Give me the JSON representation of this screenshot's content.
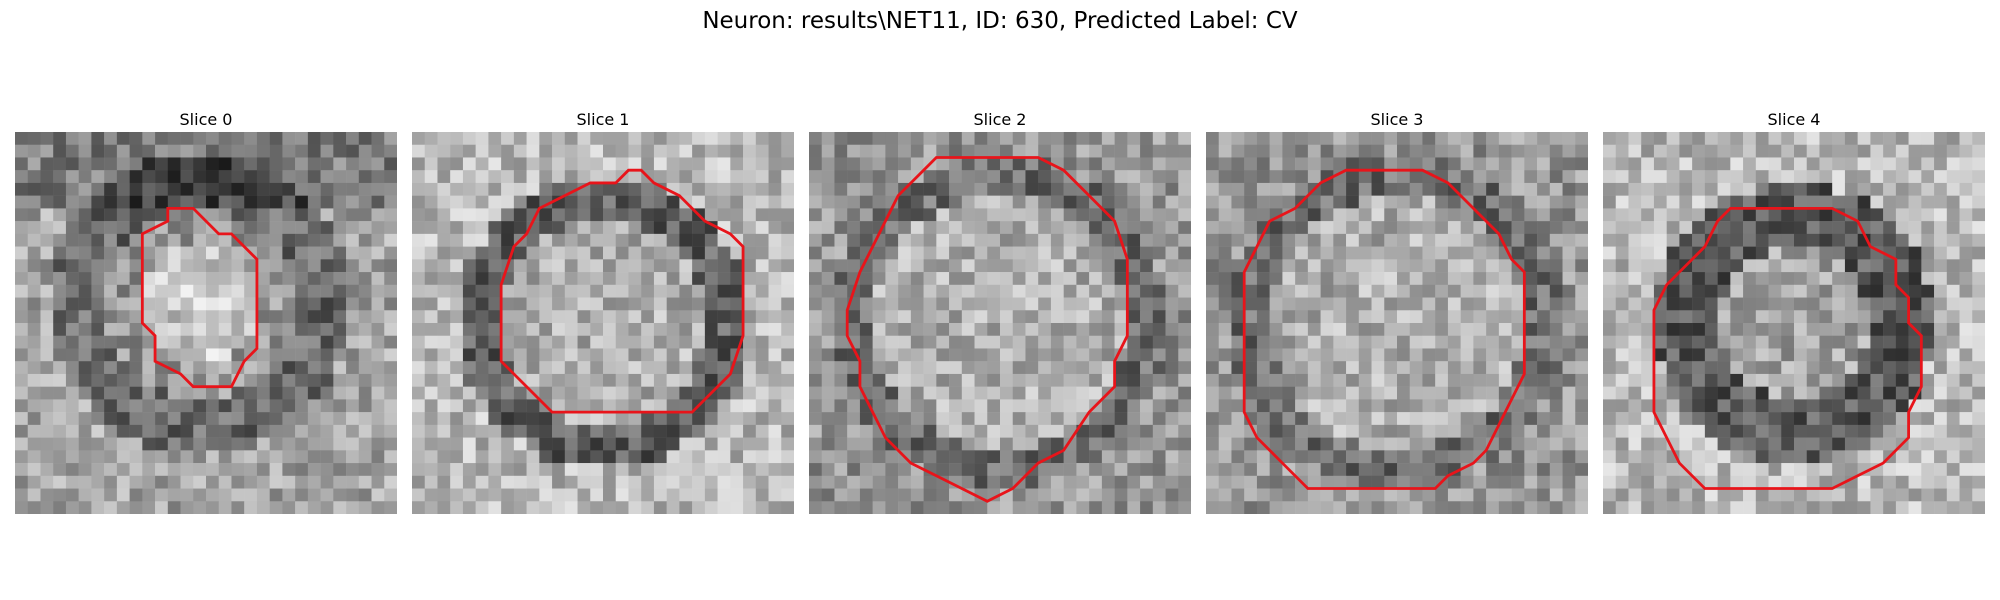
{
  "figure": {
    "title": "Neuron: results\\NET11, ID: 630, Predicted Label: CV"
  },
  "contour_color": "#e8141a",
  "grid_size": 30,
  "slices": [
    {
      "label": "Slice 0",
      "seed": 11,
      "pattern": "blob-small",
      "contour": [
        [
          12,
          6
        ],
        [
          14,
          6
        ],
        [
          16,
          8
        ],
        [
          17,
          8
        ],
        [
          19,
          10
        ],
        [
          19,
          13
        ],
        [
          19,
          15
        ],
        [
          19,
          17
        ],
        [
          18,
          18
        ],
        [
          17,
          20
        ],
        [
          15,
          20
        ],
        [
          14,
          20
        ],
        [
          13,
          19
        ],
        [
          11,
          18
        ],
        [
          11,
          16
        ],
        [
          10,
          15
        ],
        [
          10,
          13
        ],
        [
          10,
          11
        ],
        [
          10,
          8
        ],
        [
          12,
          7
        ]
      ]
    },
    {
      "label": "Slice 1",
      "seed": 23,
      "pattern": "ring",
      "contour": [
        [
          17,
          3
        ],
        [
          18,
          3
        ],
        [
          19,
          4
        ],
        [
          21,
          5
        ],
        [
          23,
          7
        ],
        [
          25,
          8
        ],
        [
          26,
          9
        ],
        [
          26,
          11
        ],
        [
          26,
          13
        ],
        [
          26,
          16
        ],
        [
          25,
          19
        ],
        [
          23,
          21
        ],
        [
          22,
          22
        ],
        [
          20,
          22
        ],
        [
          18,
          22
        ],
        [
          16,
          22
        ],
        [
          14,
          22
        ],
        [
          12,
          22
        ],
        [
          11,
          22
        ],
        [
          10,
          21
        ],
        [
          8,
          19
        ],
        [
          7,
          18
        ],
        [
          7,
          16
        ],
        [
          7,
          14
        ],
        [
          7,
          12
        ],
        [
          8,
          9
        ],
        [
          9,
          8
        ],
        [
          10,
          6
        ],
        [
          12,
          5
        ],
        [
          14,
          4
        ],
        [
          16,
          4
        ]
      ]
    },
    {
      "label": "Slice 2",
      "seed": 37,
      "pattern": "ring-large",
      "contour": [
        [
          11,
          2
        ],
        [
          18,
          2
        ],
        [
          20,
          3
        ],
        [
          22,
          5
        ],
        [
          24,
          7
        ],
        [
          25,
          10
        ],
        [
          25,
          12
        ],
        [
          25,
          14
        ],
        [
          25,
          16
        ],
        [
          24,
          18
        ],
        [
          24,
          20
        ],
        [
          22,
          22
        ],
        [
          20,
          25
        ],
        [
          18,
          26
        ],
        [
          16,
          28
        ],
        [
          14,
          29
        ],
        [
          12,
          28
        ],
        [
          10,
          27
        ],
        [
          8,
          26
        ],
        [
          6,
          24
        ],
        [
          5,
          22
        ],
        [
          4,
          20
        ],
        [
          4,
          18
        ],
        [
          3,
          16
        ],
        [
          3,
          14
        ],
        [
          4,
          11
        ],
        [
          5,
          9
        ],
        [
          6,
          7
        ],
        [
          7,
          5
        ],
        [
          9,
          3
        ],
        [
          10,
          2
        ]
      ]
    },
    {
      "label": "Slice 3",
      "seed": 51,
      "pattern": "ring-large",
      "contour": [
        [
          12,
          3
        ],
        [
          17,
          3
        ],
        [
          19,
          4
        ],
        [
          21,
          6
        ],
        [
          23,
          8
        ],
        [
          24,
          10
        ],
        [
          25,
          11
        ],
        [
          25,
          13
        ],
        [
          25,
          15
        ],
        [
          25,
          17
        ],
        [
          25,
          19
        ],
        [
          24,
          21
        ],
        [
          23,
          23
        ],
        [
          22,
          25
        ],
        [
          21,
          26
        ],
        [
          19,
          27
        ],
        [
          18,
          28
        ],
        [
          13,
          28
        ],
        [
          11,
          28
        ],
        [
          8,
          28
        ],
        [
          6,
          26
        ],
        [
          4,
          24
        ],
        [
          3,
          22
        ],
        [
          3,
          19
        ],
        [
          3,
          16
        ],
        [
          3,
          13
        ],
        [
          3,
          11
        ],
        [
          4,
          9
        ],
        [
          5,
          7
        ],
        [
          7,
          6
        ],
        [
          9,
          4
        ],
        [
          11,
          3
        ]
      ]
    },
    {
      "label": "Slice 4",
      "seed": 67,
      "pattern": "ring-dark",
      "contour": [
        [
          11,
          6
        ],
        [
          18,
          6
        ],
        [
          20,
          7
        ],
        [
          21,
          9
        ],
        [
          23,
          10
        ],
        [
          23,
          12
        ],
        [
          24,
          13
        ],
        [
          24,
          15
        ],
        [
          25,
          16
        ],
        [
          25,
          18
        ],
        [
          25,
          20
        ],
        [
          24,
          22
        ],
        [
          24,
          24
        ],
        [
          22,
          26
        ],
        [
          20,
          27
        ],
        [
          18,
          28
        ],
        [
          16,
          28
        ],
        [
          10,
          28
        ],
        [
          8,
          28
        ],
        [
          6,
          26
        ],
        [
          5,
          24
        ],
        [
          4,
          22
        ],
        [
          4,
          20
        ],
        [
          4,
          18
        ],
        [
          4,
          16
        ],
        [
          4,
          14
        ],
        [
          5,
          12
        ],
        [
          6,
          11
        ],
        [
          8,
          9
        ],
        [
          9,
          7
        ],
        [
          10,
          6
        ]
      ]
    }
  ]
}
